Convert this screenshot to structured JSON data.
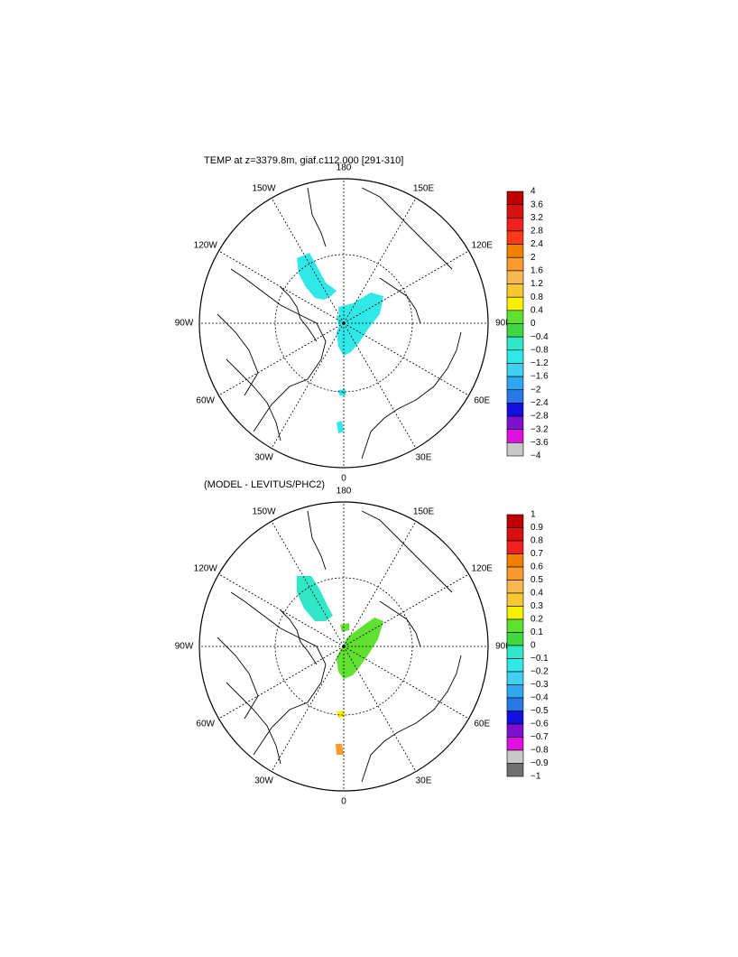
{
  "panels": [
    {
      "title": "TEMP at z=3379.8m, giaf.c112.000 [291-310]",
      "lon_labels": [
        "180",
        "150E",
        "120E",
        "90E",
        "60E",
        "30E",
        "0",
        "30W",
        "60W",
        "90W",
        "120W",
        "150W"
      ],
      "colorbar": {
        "labels": [
          "4",
          "3.6",
          "3.2",
          "2.8",
          "2.4",
          "2",
          "1.6",
          "1.2",
          "0.8",
          "0.4",
          "0",
          "−0.4",
          "−0.8",
          "−1.2",
          "−1.6",
          "−2",
          "−2.4",
          "−2.8",
          "−3.2",
          "−3.6",
          "−4"
        ],
        "colors": [
          "#c00000",
          "#d81010",
          "#f02020",
          "#ff3a1a",
          "#f08000",
          "#f89a30",
          "#f8b850",
          "#f8c830",
          "#f8f000",
          "#60e030",
          "#40d840",
          "#30e8c8",
          "#30e8e8",
          "#40d0f0",
          "#30a8f0",
          "#2878e8",
          "#1010e0",
          "#8010d0",
          "#e010e0",
          "#c8c8c8"
        ]
      }
    },
    {
      "title": "(MODEL - LEVITUS/PHC2)",
      "lon_labels": [
        "180",
        "150E",
        "120E",
        "90E",
        "60E",
        "30E",
        "0",
        "30W",
        "60W",
        "90W",
        "120W",
        "150W"
      ],
      "colorbar": {
        "labels": [
          "1",
          "0.9",
          "0.8",
          "0.7",
          "0.6",
          "0.5",
          "0.4",
          "0.3",
          "0.2",
          "0.1",
          "0",
          "−0.1",
          "−0.2",
          "−0.3",
          "−0.4",
          "−0.5",
          "−0.6",
          "−0.7",
          "−0.8",
          "−0.9",
          "−1"
        ],
        "colors": [
          "#c00000",
          "#d81010",
          "#f02020",
          "#f08000",
          "#f89a30",
          "#f8b850",
          "#f8c830",
          "#f8f000",
          "#60e030",
          "#40d840",
          "#30e8c8",
          "#30e8e8",
          "#40d0f0",
          "#30a8f0",
          "#2878e8",
          "#1010e0",
          "#8010d0",
          "#e010e0",
          "#c8c8c8",
          "#707070"
        ]
      }
    }
  ]
}
